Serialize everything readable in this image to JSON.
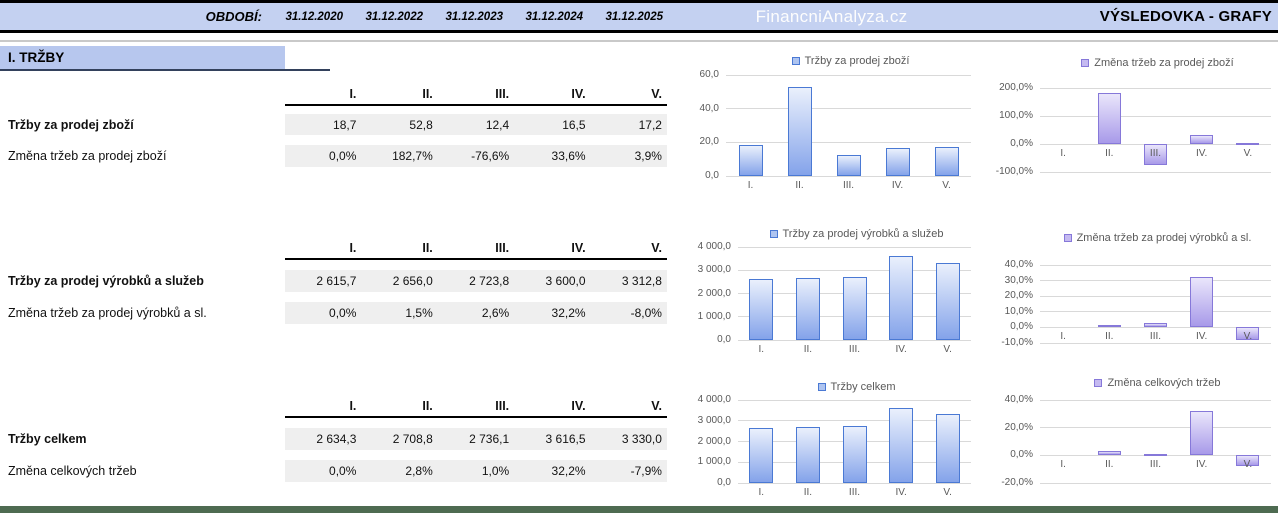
{
  "header": {
    "period_label": "OBDOBÍ:",
    "periods": [
      "31.12.2020",
      "31.12.2022",
      "31.12.2023",
      "31.12.2024",
      "31.12.2025"
    ],
    "brand": "FinancniAnalyza.cz",
    "title": "VÝSLEDOVKA - GRAFY"
  },
  "section_title": "I. TRŽBY",
  "tables": [
    {
      "columns": [
        "I.",
        "II.",
        "III.",
        "IV.",
        "V."
      ],
      "rows": [
        {
          "label": "Tržby za prodej zboží",
          "bold": true,
          "values": [
            "18,7",
            "52,8",
            "12,4",
            "16,5",
            "17,2"
          ]
        },
        {
          "label": "Změna tržeb za prodej zboží",
          "bold": false,
          "values": [
            "0,0%",
            "182,7%",
            "-76,6%",
            "33,6%",
            "3,9%"
          ]
        }
      ]
    },
    {
      "columns": [
        "I.",
        "II.",
        "III.",
        "IV.",
        "V."
      ],
      "rows": [
        {
          "label": "Tržby za prodej výrobků a služeb",
          "bold": true,
          "values": [
            "2 615,7",
            "2 656,0",
            "2 723,8",
            "3 600,0",
            "3 312,8"
          ]
        },
        {
          "label": "Změna tržeb za prodej výrobků a sl.",
          "bold": false,
          "values": [
            "0,0%",
            "1,5%",
            "2,6%",
            "32,2%",
            "-8,0%"
          ]
        }
      ]
    },
    {
      "columns": [
        "I.",
        "II.",
        "III.",
        "IV.",
        "V."
      ],
      "rows": [
        {
          "label": "Tržby celkem",
          "bold": true,
          "values": [
            "2 634,3",
            "2 708,8",
            "2 736,1",
            "3 616,5",
            "3 330,0"
          ]
        },
        {
          "label": "Změna celkových tržeb",
          "bold": false,
          "values": [
            "0,0%",
            "2,8%",
            "1,0%",
            "32,2%",
            "-7,9%"
          ]
        }
      ]
    }
  ],
  "chart_data": [
    {
      "type": "bar",
      "title": "Tržby za prodej zboží",
      "categories": [
        "I.",
        "II.",
        "III.",
        "IV.",
        "V."
      ],
      "values": [
        18.7,
        52.8,
        12.4,
        16.5,
        17.2
      ],
      "ylim": [
        0,
        60
      ],
      "yticks": [
        {
          "v": 0,
          "label": "0,0"
        },
        {
          "v": 20,
          "label": "20,0"
        },
        {
          "v": 40,
          "label": "40,0"
        },
        {
          "v": 60,
          "label": "60,0"
        }
      ],
      "theme": "blue",
      "legend_position": "top",
      "grid": true
    },
    {
      "type": "bar",
      "title": "Změna tržeb za prodej zboží",
      "categories": [
        "I.",
        "II.",
        "III.",
        "IV.",
        "V."
      ],
      "values": [
        0,
        182.7,
        -76.6,
        33.6,
        3.9
      ],
      "ylim": [
        -100,
        200
      ],
      "yticks": [
        {
          "v": -100,
          "label": "-100,0%"
        },
        {
          "v": 0,
          "label": "0,0%"
        },
        {
          "v": 100,
          "label": "100,0%"
        },
        {
          "v": 200,
          "label": "200,0%"
        }
      ],
      "theme": "purple",
      "legend_position": "top",
      "grid": true
    },
    {
      "type": "bar",
      "title": "Tržby za prodej výrobků a služeb",
      "categories": [
        "I.",
        "II.",
        "III.",
        "IV.",
        "V."
      ],
      "values": [
        2615.7,
        2656.0,
        2723.8,
        3600.0,
        3312.8
      ],
      "ylim": [
        0,
        4000
      ],
      "yticks": [
        {
          "v": 0,
          "label": "0,0"
        },
        {
          "v": 1000,
          "label": "1 000,0"
        },
        {
          "v": 2000,
          "label": "2 000,0"
        },
        {
          "v": 3000,
          "label": "3 000,0"
        },
        {
          "v": 4000,
          "label": "4 000,0"
        }
      ],
      "theme": "blue",
      "legend_position": "top",
      "grid": true
    },
    {
      "type": "bar",
      "title": "Změna tržeb za prodej výrobků a sl.",
      "categories": [
        "I.",
        "II.",
        "III.",
        "IV.",
        "V."
      ],
      "values": [
        0,
        1.5,
        2.6,
        32.2,
        -8.0
      ],
      "ylim": [
        -10,
        40
      ],
      "yticks": [
        {
          "v": -10,
          "label": "-10,0%"
        },
        {
          "v": 0,
          "label": "0,0%"
        },
        {
          "v": 10,
          "label": "10,0%"
        },
        {
          "v": 20,
          "label": "20,0%"
        },
        {
          "v": 30,
          "label": "30,0%"
        },
        {
          "v": 40,
          "label": "40,0%"
        }
      ],
      "theme": "purple",
      "legend_position": "top",
      "grid": true
    },
    {
      "type": "bar",
      "title": "Tržby celkem",
      "categories": [
        "I.",
        "II.",
        "III.",
        "IV.",
        "V."
      ],
      "values": [
        2634.3,
        2708.8,
        2736.1,
        3616.5,
        3330.0
      ],
      "ylim": [
        0,
        4000
      ],
      "yticks": [
        {
          "v": 0,
          "label": "0,0"
        },
        {
          "v": 1000,
          "label": "1 000,0"
        },
        {
          "v": 2000,
          "label": "2 000,0"
        },
        {
          "v": 3000,
          "label": "3 000,0"
        },
        {
          "v": 4000,
          "label": "4 000,0"
        }
      ],
      "theme": "blue",
      "legend_position": "top",
      "grid": true
    },
    {
      "type": "bar",
      "title": "Změna celkových tržeb",
      "categories": [
        "I.",
        "II.",
        "III.",
        "IV.",
        "V."
      ],
      "values": [
        0,
        2.8,
        1.0,
        32.2,
        -7.9
      ],
      "ylim": [
        -20,
        40
      ],
      "yticks": [
        {
          "v": -20,
          "label": "-20,0%"
        },
        {
          "v": 0,
          "label": "0,0%"
        },
        {
          "v": 20,
          "label": "20,0%"
        },
        {
          "v": 40,
          "label": "40,0%"
        }
      ],
      "theme": "purple",
      "legend_position": "top",
      "grid": true
    }
  ],
  "colors": {
    "band_blue": "#c4d1f1",
    "section_blue": "#b7c7ee",
    "cell_gray": "#efefef",
    "bar_blue_border": "#4a79d4",
    "bar_purple_border": "#8678d9",
    "gridline": "#d9d9d9",
    "axis_text": "#595959",
    "footer_green": "#4e6b51"
  }
}
